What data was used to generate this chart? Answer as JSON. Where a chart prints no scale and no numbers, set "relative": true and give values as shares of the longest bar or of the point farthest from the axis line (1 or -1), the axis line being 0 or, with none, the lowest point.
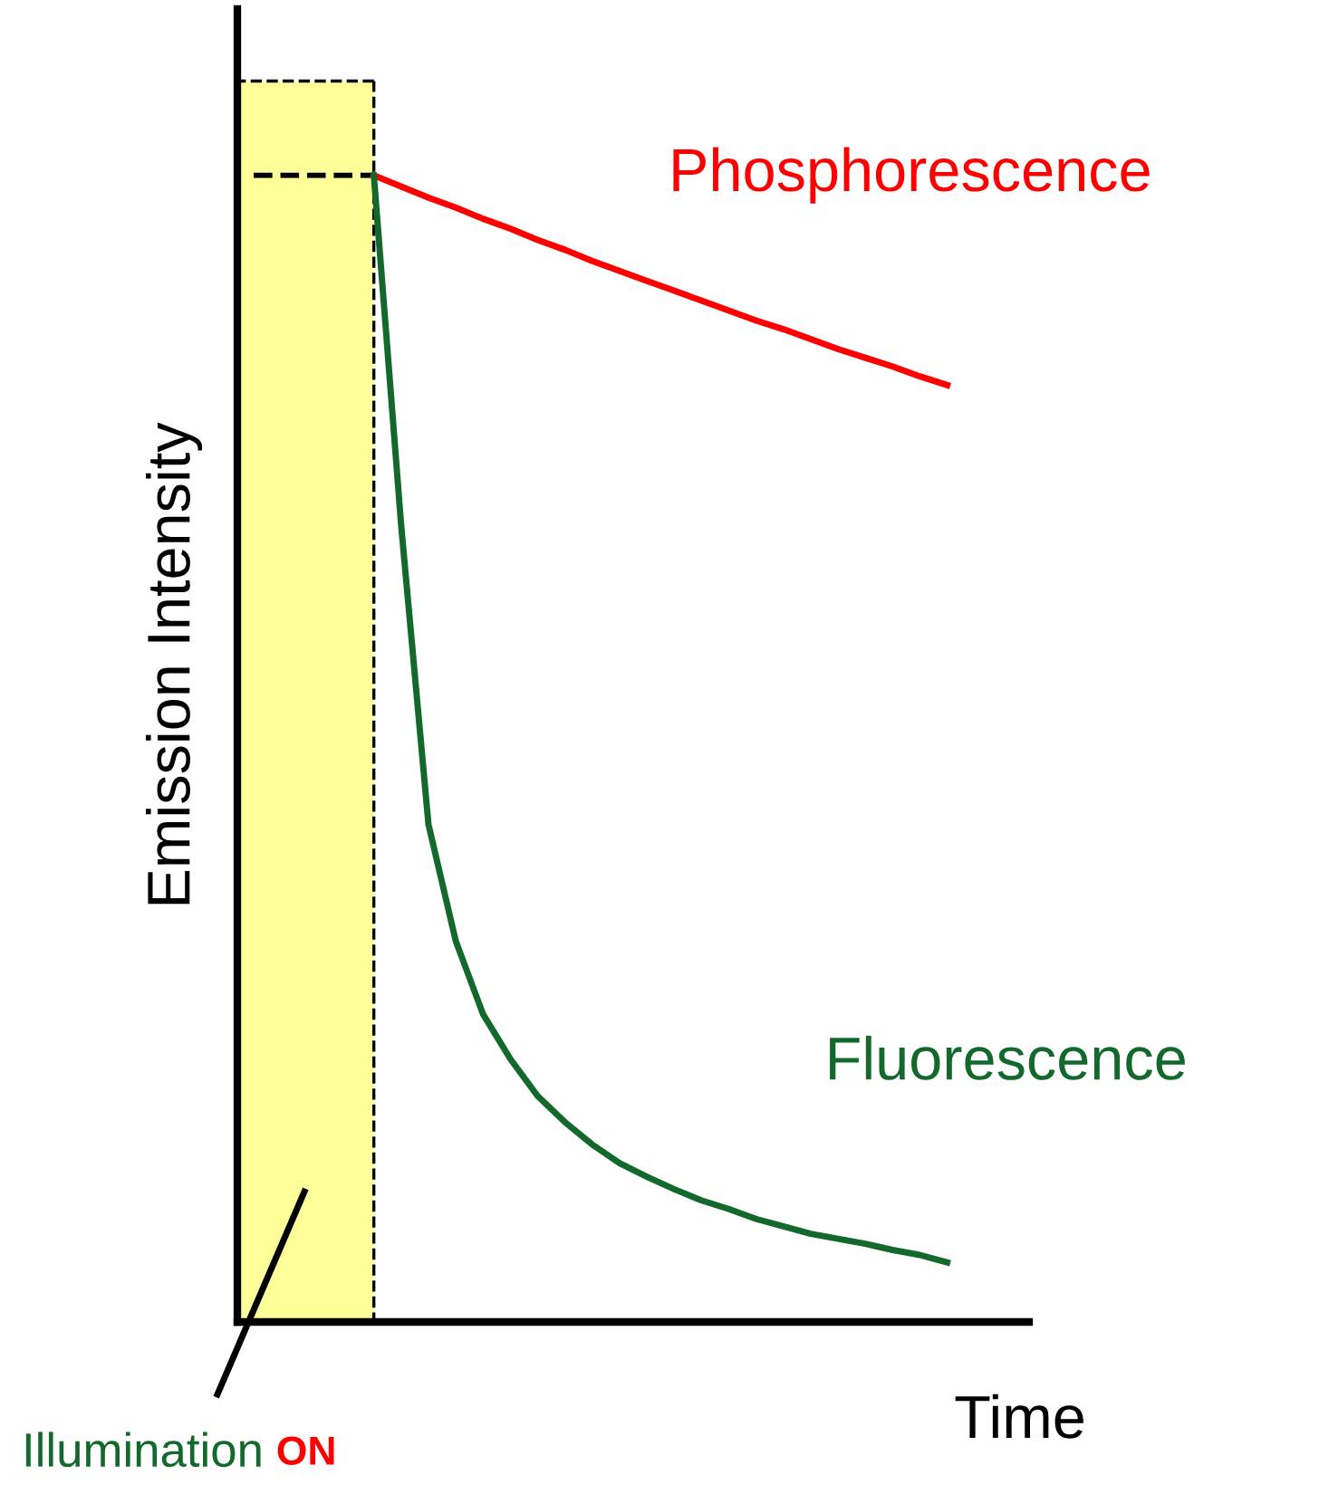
{
  "chart_data": {
    "type": "line",
    "relative": true,
    "xlabel": "Time",
    "ylabel": "Emission Intensity",
    "categories": [
      null,
      null,
      null,
      null,
      null,
      null,
      null,
      null,
      null,
      null,
      null,
      null,
      null,
      null,
      null,
      null,
      null,
      null,
      null,
      null,
      null,
      null,
      null,
      null,
      null,
      null,
      null,
      null,
      null,
      null
    ],
    "series": [
      {
        "type": "area",
        "color": "#ffff99",
        "values": [
          1,
          1,
          1,
          1,
          1,
          1,
          null,
          null,
          null,
          null,
          null,
          null,
          null,
          null,
          null,
          null,
          null,
          null,
          null,
          null,
          null,
          null,
          null,
          null,
          null,
          null,
          null,
          null,
          null,
          null
        ]
      },
      {
        "name": "Phosphorescence",
        "color": "#ff0000",
        "values": [
          null,
          null,
          null,
          null,
          null,
          0.924,
          0.915,
          0.906,
          0.898,
          0.889,
          0.881,
          0.872,
          0.864,
          0.855,
          0.847,
          0.839,
          0.831,
          0.823,
          0.815,
          0.807,
          0.8,
          0.792,
          0.784,
          0.777,
          0.77,
          0.762,
          0.755,
          null,
          null,
          null
        ]
      },
      {
        "name": "Fluorescence",
        "color": "#13682b",
        "values": [
          null,
          null,
          null,
          null,
          null,
          0.924,
          0.642,
          0.401,
          0.307,
          0.248,
          0.212,
          0.182,
          0.161,
          0.143,
          0.128,
          0.117,
          0.107,
          0.098,
          0.091,
          0.083,
          0.077,
          0.071,
          0.067,
          0.063,
          0.058,
          0.054,
          0.048,
          null,
          null,
          null
        ]
      }
    ],
    "ref_lines": [
      {
        "axis": "y",
        "value": 0.924,
        "line_style": "dashed",
        "color": "#000000"
      }
    ],
    "annotations": [
      "Illumination",
      "ON"
    ],
    "legend": false,
    "line_style": "solid",
    "marker": "none"
  }
}
